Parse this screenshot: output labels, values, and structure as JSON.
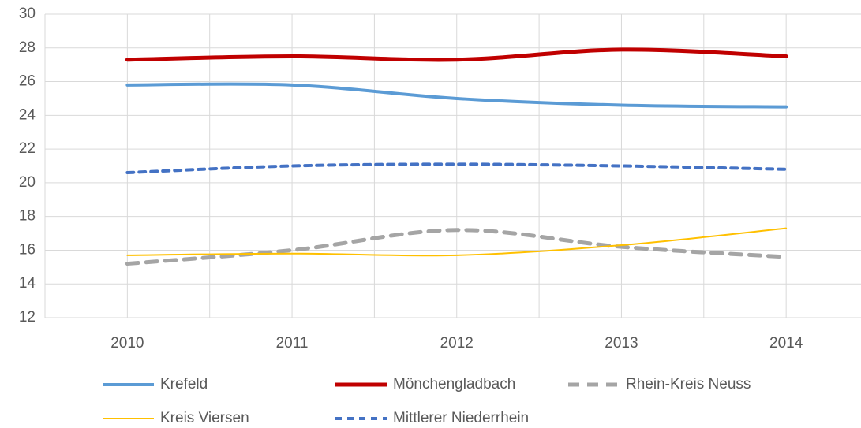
{
  "chart_data": {
    "type": "line",
    "categories": [
      "2010",
      "2011",
      "2012",
      "2013",
      "2014"
    ],
    "series": [
      {
        "name": "Krefeld",
        "color": "#5b9bd5",
        "values": [
          25.8,
          25.8,
          25.0,
          24.6,
          24.5
        ]
      },
      {
        "name": "Mönchengladbach",
        "color": "#c00000",
        "values": [
          27.3,
          27.5,
          27.3,
          27.9,
          27.5
        ]
      },
      {
        "name": "Rhein-Kreis Neuss",
        "color": "#a5a5a5",
        "dash": true,
        "values": [
          15.2,
          16.0,
          17.2,
          16.2,
          15.6
        ]
      },
      {
        "name": "Kreis Viersen",
        "color": "#ffc000",
        "values": [
          15.7,
          15.8,
          15.7,
          16.3,
          17.3
        ]
      },
      {
        "name": "Mittlerer Niederrhein",
        "color": "#4472c4",
        "dash": true,
        "values": [
          20.6,
          21.0,
          21.1,
          21.0,
          20.8
        ]
      }
    ],
    "ylim": [
      12,
      30
    ],
    "yticks": [
      12,
      14,
      16,
      18,
      20,
      22,
      24,
      26,
      28,
      30
    ],
    "grid": true,
    "smooth": true,
    "legend": "bottom"
  }
}
